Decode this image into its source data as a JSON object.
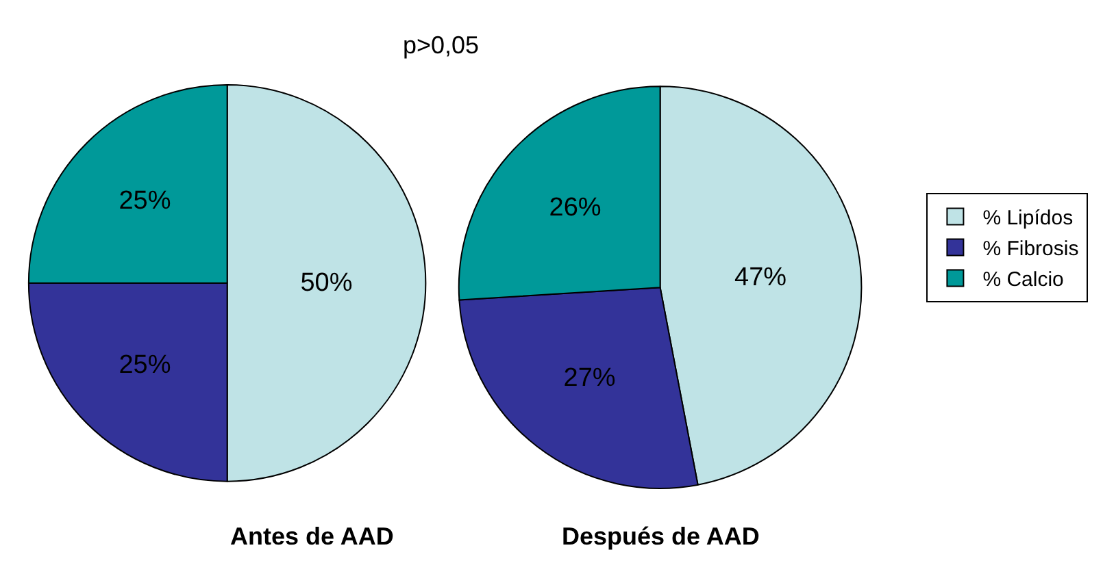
{
  "chart_data": [
    {
      "type": "pie",
      "title": "Antes de AAD",
      "categories": [
        "% Lipídos",
        "% Fibrosis",
        "% Calcio"
      ],
      "values": [
        50,
        25,
        25
      ],
      "value_labels": [
        "50%",
        "25%",
        "25%"
      ],
      "colors": [
        "#bfe3e6",
        "#333399",
        "#009999"
      ],
      "legend": "right",
      "annotations": [
        "p>0,05"
      ]
    },
    {
      "type": "pie",
      "title": "Después de AAD",
      "categories": [
        null,
        null,
        null
      ],
      "values": [
        47,
        27,
        26
      ],
      "value_labels": [
        "47%",
        "27%",
        "26%"
      ],
      "colors": [
        "#bfe3e6",
        "#333399",
        "#009999"
      ],
      "legend": false
    }
  ]
}
